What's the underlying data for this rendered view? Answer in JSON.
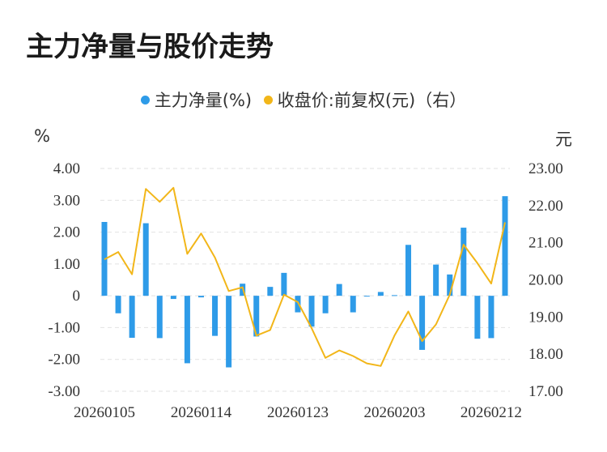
{
  "title": "主力净量与股价走势",
  "legend": [
    {
      "label": "主力净量(%)",
      "color": "#2e9be8"
    },
    {
      "label": "收盘价:前复权(元)（右）",
      "color": "#f2b619"
    }
  ],
  "units": {
    "left": "%",
    "right": "元"
  },
  "chart_data": {
    "type": "bar+line",
    "x_ticks": [
      "20260105",
      "20260114",
      "20260123",
      "20260203",
      "20260212"
    ],
    "y_left_ticks": [
      "4.00",
      "3.00",
      "2.00",
      "1.00",
      "0",
      "-1.00",
      "-2.00",
      "-3.00"
    ],
    "y_right_ticks": [
      "23.00",
      "22.00",
      "21.00",
      "20.00",
      "19.00",
      "18.00",
      "17.00"
    ],
    "ylim_left": [
      -3,
      4
    ],
    "ylim_right": [
      17,
      23
    ],
    "grid": true,
    "legend_position": "top",
    "series": [
      {
        "name": "主力净量(%)",
        "type": "bar",
        "color": "#2e9be8",
        "values": [
          2.32,
          -0.55,
          -1.32,
          2.28,
          -1.33,
          -0.1,
          -2.12,
          -0.05,
          -1.26,
          -2.25,
          0.38,
          -1.28,
          0.28,
          0.72,
          -0.52,
          -0.97,
          -0.55,
          0.37,
          -0.52,
          0.0,
          0.12,
          0.02,
          1.6,
          -1.7,
          0.98,
          0.67,
          2.14,
          -1.35,
          -1.33,
          3.13
        ]
      },
      {
        "name": "收盘价:前复权(元)（右）",
        "type": "line",
        "color": "#f2b619",
        "values": [
          20.55,
          20.75,
          20.15,
          22.45,
          22.1,
          22.48,
          20.7,
          21.25,
          20.6,
          19.7,
          19.8,
          18.5,
          18.65,
          19.6,
          19.4,
          18.7,
          17.9,
          18.1,
          17.95,
          17.75,
          17.68,
          18.5,
          19.15,
          18.35,
          18.8,
          19.6,
          20.95,
          20.45,
          19.9,
          21.55
        ]
      }
    ]
  }
}
